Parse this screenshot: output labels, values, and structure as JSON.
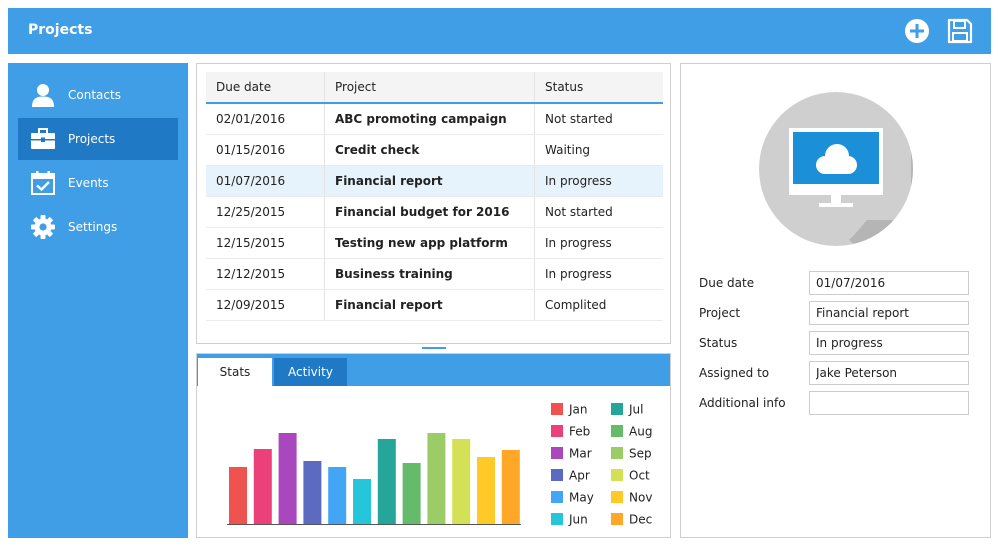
{
  "header": {
    "title": "Projects",
    "add_icon": "plus-circle-icon",
    "save_icon": "floppy-disk-icon"
  },
  "sidebar": {
    "items": [
      {
        "label": "Contacts",
        "icon": "user-icon",
        "active": false
      },
      {
        "label": "Projects",
        "icon": "briefcase-icon",
        "active": true
      },
      {
        "label": "Events",
        "icon": "calendar-check-icon",
        "active": false
      },
      {
        "label": "Settings",
        "icon": "gear-icon",
        "active": false
      }
    ]
  },
  "grid": {
    "columns": [
      "Due date",
      "Project",
      "Status"
    ],
    "rows": [
      {
        "due": "02/01/2016",
        "project": "ABC promoting campaign",
        "status": "Not started"
      },
      {
        "due": "01/15/2016",
        "project": "Credit check",
        "status": "Waiting"
      },
      {
        "due": "01/07/2016",
        "project": "Financial report",
        "status": "In progress"
      },
      {
        "due": "12/25/2015",
        "project": "Financial budget for 2016",
        "status": "Not started"
      },
      {
        "due": "12/15/2015",
        "project": "Testing new app platform",
        "status": "In progress"
      },
      {
        "due": "12/12/2015",
        "project": "Business training",
        "status": "In progress"
      },
      {
        "due": "12/09/2015",
        "project": "Financial report",
        "status": "Complited"
      }
    ],
    "selected_index": 2
  },
  "tabs": [
    {
      "label": "Stats",
      "active": true
    },
    {
      "label": "Activity",
      "active": false
    }
  ],
  "chart_data": {
    "type": "bar",
    "categories": [
      "Jan",
      "Feb",
      "Mar",
      "Apr",
      "May",
      "Jun",
      "Jul",
      "Aug",
      "Sep",
      "Oct",
      "Nov",
      "Dec"
    ],
    "values": [
      57,
      75,
      91,
      63,
      57,
      45,
      85,
      61,
      91,
      85,
      67,
      74
    ],
    "colors": [
      "#ef5350",
      "#ec407a",
      "#ab47bc",
      "#5c6bc0",
      "#42a5f5",
      "#26c6da",
      "#26a69a",
      "#66bb6a",
      "#9ccc65",
      "#d4e157",
      "#ffca28",
      "#ffa726"
    ],
    "ylim": [
      0,
      100
    ],
    "legend": "right",
    "grid": false
  },
  "form": {
    "fields": [
      {
        "label": "Due date",
        "value": "01/07/2016"
      },
      {
        "label": "Project",
        "value": "Financial report"
      },
      {
        "label": "Status",
        "value": "In progress"
      },
      {
        "label": "Assigned to",
        "value": "Jake Peterson"
      },
      {
        "label": "Additional info",
        "value": ""
      }
    ],
    "illustration_icon": "monitor-cloud-icon"
  },
  "colors": {
    "accent": "#3f9ee6",
    "accent_dark": "#1f79c4",
    "selected_row": "#e6f3fc"
  }
}
